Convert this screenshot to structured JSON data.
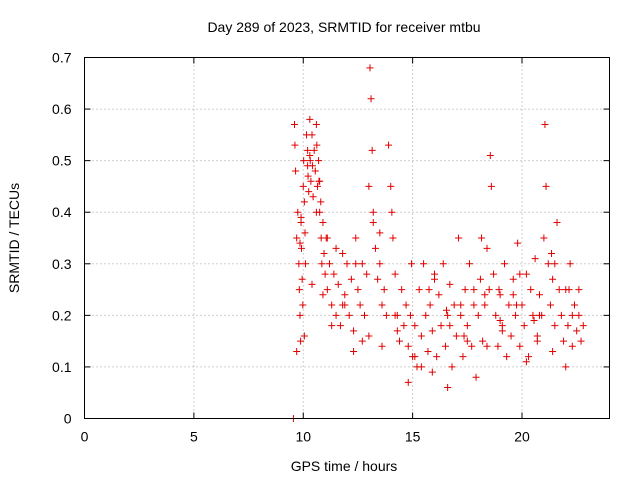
{
  "chart_data": {
    "type": "scatter",
    "title": "Day 289 of 2023, SRMTID for receiver mtbu",
    "xlabel": "GPS time / hours",
    "ylabel": "SRMTID / TECUs",
    "xlim": [
      0,
      24
    ],
    "ylim": [
      0,
      0.7
    ],
    "xticks": [
      0,
      5,
      10,
      15,
      20
    ],
    "xtick_labels": [
      "0",
      "5",
      "10",
      "15",
      "20"
    ],
    "yticks": [
      0,
      0.1,
      0.2,
      0.3,
      0.4,
      0.5,
      0.6,
      0.7
    ],
    "ytick_labels": [
      "0",
      "0.1",
      "0.2",
      "0.3",
      "0.4",
      "0.5",
      "0.6",
      "0.7"
    ],
    "grid": true,
    "marker": "+",
    "color": "#e00000",
    "series": [
      {
        "name": "SRMTID",
        "x": [
          9.55,
          9.6,
          9.62,
          9.65,
          9.7,
          9.75,
          9.8,
          9.82,
          9.85,
          9.88,
          9.9,
          9.92,
          9.95,
          9.98,
          10.0,
          10.02,
          10.05,
          10.08,
          10.1,
          10.15,
          10.2,
          10.22,
          10.25,
          10.3,
          10.32,
          10.35,
          10.4,
          10.42,
          10.45,
          10.5,
          10.55,
          10.6,
          10.62,
          10.65,
          10.7,
          10.72,
          10.75,
          10.8,
          10.82,
          10.85,
          10.9,
          10.95,
          11.0,
          11.05,
          11.1,
          11.2,
          11.3,
          11.4,
          11.5,
          11.6,
          11.7,
          11.8,
          11.9,
          12.0,
          12.1,
          12.2,
          12.3,
          12.4,
          12.5,
          12.6,
          12.7,
          12.8,
          12.9,
          13.0,
          13.05,
          13.1,
          13.15,
          13.2,
          13.3,
          13.4,
          13.5,
          13.6,
          13.7,
          13.8,
          13.9,
          14.0,
          14.1,
          14.2,
          14.3,
          14.4,
          14.5,
          14.6,
          14.7,
          14.8,
          14.9,
          15.0,
          15.1,
          15.2,
          15.3,
          15.4,
          15.5,
          15.6,
          15.7,
          15.8,
          15.9,
          16.0,
          16.1,
          16.2,
          16.3,
          16.4,
          16.5,
          16.6,
          16.7,
          16.8,
          16.9,
          17.0,
          17.1,
          17.2,
          17.3,
          17.4,
          17.5,
          17.6,
          17.7,
          17.8,
          17.9,
          18.0,
          18.1,
          18.2,
          18.3,
          18.4,
          18.5,
          18.55,
          18.6,
          18.7,
          18.8,
          18.9,
          19.0,
          19.1,
          19.2,
          19.3,
          19.4,
          19.5,
          19.6,
          19.7,
          19.8,
          19.9,
          20.0,
          20.1,
          20.2,
          20.3,
          20.4,
          20.5,
          20.6,
          20.7,
          20.8,
          20.9,
          21.0,
          21.05,
          21.1,
          21.2,
          21.3,
          21.4,
          21.5,
          21.6,
          21.7,
          21.8,
          21.9,
          22.0,
          22.1,
          22.2,
          22.3,
          22.4,
          22.5,
          22.6,
          22.7,
          22.8,
          9.7,
          9.85,
          10.05,
          10.3,
          10.6,
          10.9,
          11.3,
          11.8,
          12.4,
          13.0,
          13.6,
          14.2,
          14.8,
          15.4,
          16.0,
          16.6,
          17.2,
          17.8,
          18.4,
          19.0,
          19.6,
          20.2,
          20.8,
          21.4,
          22.0,
          22.6,
          9.9,
          10.4,
          11.1,
          11.9,
          12.7,
          13.5,
          14.3,
          15.1,
          15.9,
          16.7,
          17.5,
          18.3,
          19.1,
          19.9,
          20.7,
          21.5,
          22.3,
          10.2,
          10.75,
          11.5,
          12.3,
          13.2,
          14.05,
          14.95,
          15.75,
          16.55,
          17.35,
          18.15,
          18.95,
          19.75,
          20.55,
          21.35,
          22.15
        ],
        "y": [
          0.0,
          0.57,
          0.53,
          0.48,
          0.35,
          0.4,
          0.3,
          0.25,
          0.2,
          0.15,
          0.38,
          0.33,
          0.27,
          0.22,
          0.45,
          0.5,
          0.42,
          0.36,
          0.3,
          0.55,
          0.52,
          0.47,
          0.44,
          0.58,
          0.5,
          0.46,
          0.55,
          0.49,
          0.43,
          0.52,
          0.48,
          0.57,
          0.53,
          0.45,
          0.5,
          0.46,
          0.4,
          0.42,
          0.35,
          0.3,
          0.38,
          0.32,
          0.28,
          0.35,
          0.25,
          0.3,
          0.22,
          0.28,
          0.2,
          0.26,
          0.18,
          0.32,
          0.24,
          0.3,
          0.2,
          0.27,
          0.17,
          0.35,
          0.25,
          0.22,
          0.3,
          0.2,
          0.28,
          0.45,
          0.68,
          0.62,
          0.52,
          0.4,
          0.33,
          0.27,
          0.3,
          0.22,
          0.25,
          0.2,
          0.53,
          0.45,
          0.35,
          0.28,
          0.2,
          0.15,
          0.25,
          0.18,
          0.22,
          0.14,
          0.2,
          0.12,
          0.18,
          0.1,
          0.25,
          0.16,
          0.3,
          0.2,
          0.13,
          0.22,
          0.17,
          0.28,
          0.12,
          0.24,
          0.18,
          0.3,
          0.14,
          0.2,
          0.26,
          0.1,
          0.22,
          0.16,
          0.35,
          0.2,
          0.12,
          0.25,
          0.18,
          0.3,
          0.14,
          0.22,
          0.08,
          0.2,
          0.27,
          0.15,
          0.22,
          0.33,
          0.25,
          0.51,
          0.45,
          0.28,
          0.2,
          0.14,
          0.24,
          0.18,
          0.3,
          0.12,
          0.22,
          0.16,
          0.27,
          0.2,
          0.34,
          0.14,
          0.22,
          0.18,
          0.28,
          0.12,
          0.25,
          0.2,
          0.31,
          0.16,
          0.24,
          0.2,
          0.35,
          0.57,
          0.45,
          0.3,
          0.22,
          0.27,
          0.18,
          0.38,
          0.25,
          0.2,
          0.15,
          0.25,
          0.18,
          0.3,
          0.14,
          0.22,
          0.17,
          0.2,
          0.15,
          0.18,
          0.13,
          0.34,
          0.16,
          0.51,
          0.4,
          0.24,
          0.18,
          0.22,
          0.3,
          0.16,
          0.14,
          0.2,
          0.07,
          0.1,
          0.27,
          0.06,
          0.22,
          0.25,
          0.14,
          0.19,
          0.24,
          0.11,
          0.2,
          0.13,
          0.1,
          0.25,
          0.39,
          0.26,
          0.35,
          0.22,
          0.15,
          0.36,
          0.17,
          0.12,
          0.09,
          0.18,
          0.15,
          0.24,
          0.17,
          0.28,
          0.15,
          0.3,
          0.2,
          0.49,
          0.46,
          0.33,
          0.13,
          0.38,
          0.4,
          0.3,
          0.25,
          0.21,
          0.16,
          0.35,
          0.25,
          0.22,
          0.19,
          0.32,
          0.25
        ]
      }
    ]
  }
}
